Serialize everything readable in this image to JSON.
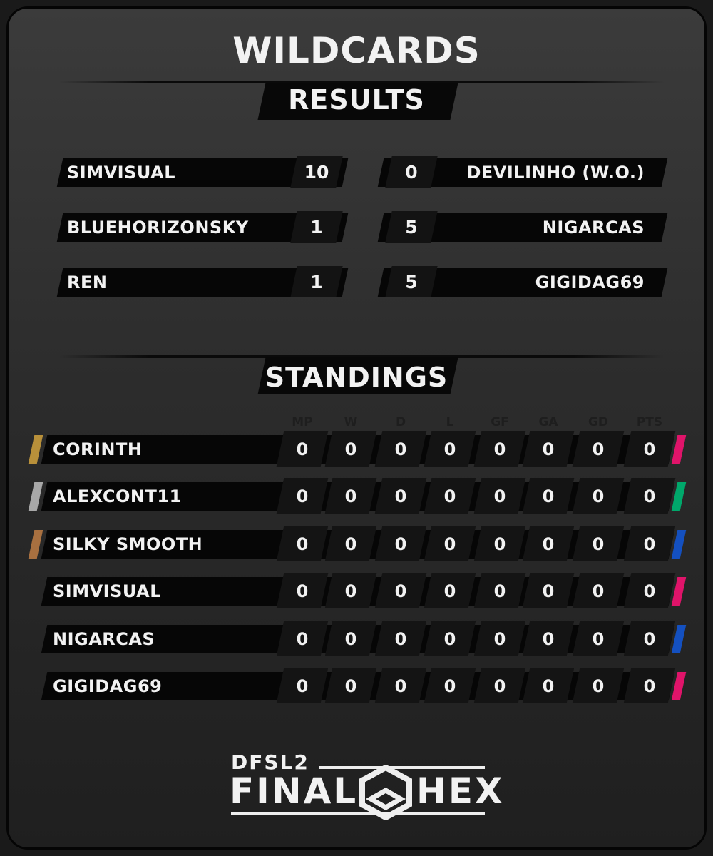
{
  "title": "WILDCARDS",
  "results": {
    "heading": "RESULTS",
    "matches": [
      {
        "home": "SIMVISUAL",
        "home_score": "10",
        "away_score": "0",
        "away": "DEVILINHO (W.O.)"
      },
      {
        "home": "BLUEHORIZONSKY",
        "home_score": "1",
        "away_score": "5",
        "away": "NIGARCAS"
      },
      {
        "home": "REN",
        "home_score": "1",
        "away_score": "5",
        "away": "GIGIDAG69"
      }
    ]
  },
  "standings": {
    "heading": "STANDINGS",
    "columns": [
      "MP",
      "W",
      "D",
      "L",
      "GF",
      "GA",
      "GD",
      "PTS"
    ],
    "rows": [
      {
        "team": "CORINTH",
        "rank_color": "#b8903a",
        "group_color": "#e0146a",
        "stats": [
          "0",
          "0",
          "0",
          "0",
          "0",
          "0",
          "0",
          "0"
        ]
      },
      {
        "team": "ALEXCONT11",
        "rank_color": "#a8a8a8",
        "group_color": "#00a86b",
        "stats": [
          "0",
          "0",
          "0",
          "0",
          "0",
          "0",
          "0",
          "0"
        ]
      },
      {
        "team": "SILKY SMOOTH",
        "rank_color": "#a87040",
        "group_color": "#1450c0",
        "stats": [
          "0",
          "0",
          "0",
          "0",
          "0",
          "0",
          "0",
          "0"
        ]
      },
      {
        "team": "SIMVISUAL",
        "rank_color": null,
        "group_color": "#e0146a",
        "stats": [
          "0",
          "0",
          "0",
          "0",
          "0",
          "0",
          "0",
          "0"
        ]
      },
      {
        "team": "NIGARCAS",
        "rank_color": null,
        "group_color": "#1450c0",
        "stats": [
          "0",
          "0",
          "0",
          "0",
          "0",
          "0",
          "0",
          "0"
        ]
      },
      {
        "team": "GIGIDAG69",
        "rank_color": null,
        "group_color": "#e0146a",
        "stats": [
          "0",
          "0",
          "0",
          "0",
          "0",
          "0",
          "0",
          "0"
        ]
      }
    ]
  },
  "logo": {
    "line1": "DFSL2",
    "line2_left": "FINAL",
    "line2_right": "HEX"
  }
}
